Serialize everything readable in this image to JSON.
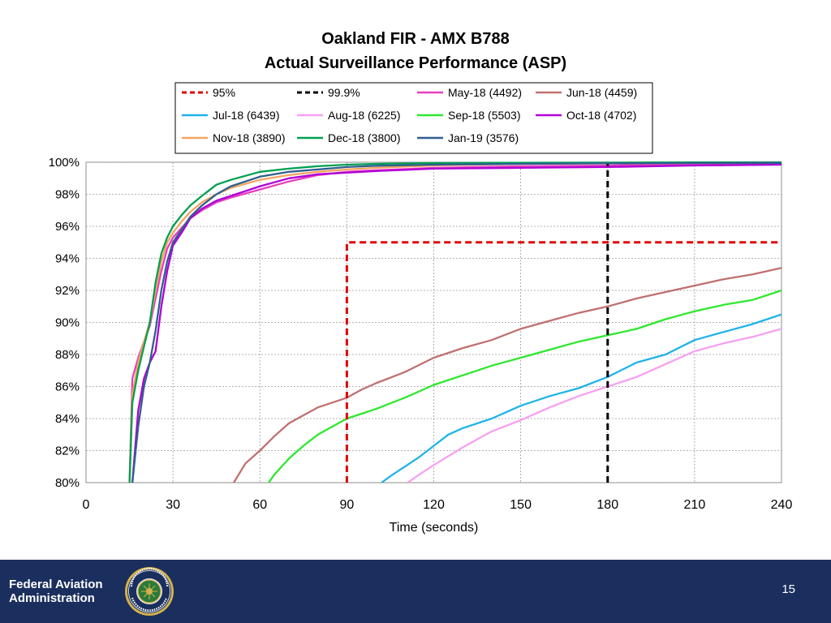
{
  "slide": {
    "agency_line1": "Federal Aviation",
    "agency_line2": "Administration",
    "page_number": "15",
    "footer_color": "#1b2f5e"
  },
  "chart_data": {
    "type": "line",
    "title": "Oakland FIR - AMX B788",
    "subtitle": "Actual Surveillance  Performance (ASP)",
    "xlabel": "Time (seconds)",
    "ylabel": "",
    "xlim": [
      0,
      240
    ],
    "ylim": [
      80,
      100
    ],
    "xticks": [
      0,
      30,
      60,
      90,
      120,
      150,
      180,
      210,
      240
    ],
    "xtick_labels": [
      "0",
      "30",
      "60",
      "90",
      "120",
      "150",
      "180",
      "210",
      "240"
    ],
    "yticks": [
      80,
      82,
      84,
      86,
      88,
      90,
      92,
      94,
      96,
      98,
      100
    ],
    "ytick_labels": [
      "80%",
      "82%",
      "84%",
      "86%",
      "88%",
      "90%",
      "92%",
      "94%",
      "96%",
      "98%",
      "100%"
    ],
    "grid": true,
    "legend_position": "top",
    "series": [
      {
        "name": "95%",
        "color": "#e00000",
        "dashed": true,
        "x": [
          90,
          90,
          240
        ],
        "y": [
          80,
          95,
          95
        ]
      },
      {
        "name": "99.9%",
        "color": "#000000",
        "dashed": true,
        "x": [
          180,
          180
        ],
        "y": [
          80,
          99.9
        ]
      },
      {
        "name": "May-18 (4492)",
        "color": "#e83fbe",
        "x": [
          15,
          16,
          18,
          20,
          22,
          24,
          26,
          28,
          30,
          33,
          36,
          40,
          45,
          50,
          60,
          70,
          80,
          90,
          100,
          120,
          150,
          180,
          210,
          240
        ],
        "y": [
          80,
          86.5,
          87.8,
          88.8,
          89.8,
          91.5,
          93.2,
          94.6,
          95.3,
          95.9,
          96.5,
          97,
          97.5,
          97.8,
          98.3,
          98.8,
          99.2,
          99.4,
          99.5,
          99.65,
          99.75,
          99.8,
          99.87,
          99.9
        ]
      },
      {
        "name": "Jun-18 (4459)",
        "color": "#c07070",
        "x": [
          51,
          55,
          60,
          65,
          70,
          75,
          80,
          85,
          90,
          95,
          100,
          110,
          120,
          130,
          140,
          150,
          160,
          170,
          180,
          190,
          200,
          210,
          220,
          230,
          240
        ],
        "y": [
          80,
          81.2,
          82,
          82.9,
          83.7,
          84.2,
          84.7,
          85,
          85.3,
          85.8,
          86.2,
          86.9,
          87.8,
          88.4,
          88.9,
          89.6,
          90.1,
          90.6,
          91,
          91.5,
          91.9,
          92.3,
          92.7,
          93,
          93.4
        ]
      },
      {
        "name": "Jul-18 (6439)",
        "color": "#1fb3e8",
        "x": [
          102,
          105,
          110,
          115,
          120,
          125,
          130,
          140,
          150,
          160,
          170,
          180,
          190,
          200,
          210,
          220,
          230,
          240
        ],
        "y": [
          80,
          80.4,
          81,
          81.6,
          82.3,
          83,
          83.4,
          84,
          84.8,
          85.4,
          85.9,
          86.6,
          87.5,
          88,
          88.9,
          89.4,
          89.9,
          90.5
        ]
      },
      {
        "name": "Aug-18 (6225)",
        "color": "#f7a0f0",
        "x": [
          111,
          115,
          120,
          130,
          140,
          150,
          160,
          170,
          180,
          190,
          200,
          210,
          220,
          230,
          240
        ],
        "y": [
          80,
          80.5,
          81.1,
          82.2,
          83.2,
          83.9,
          84.7,
          85.4,
          86,
          86.6,
          87.4,
          88.2,
          88.7,
          89.1,
          89.6
        ]
      },
      {
        "name": "Sep-18 (5503)",
        "color": "#2ee82e",
        "x": [
          63,
          65,
          70,
          75,
          80,
          85,
          90,
          95,
          100,
          110,
          120,
          130,
          140,
          150,
          160,
          170,
          180,
          190,
          200,
          210,
          220,
          230,
          240
        ],
        "y": [
          80,
          80.5,
          81.5,
          82.3,
          83,
          83.5,
          84,
          84.3,
          84.6,
          85.3,
          86.1,
          86.7,
          87.3,
          87.8,
          88.3,
          88.8,
          89.2,
          89.6,
          90.2,
          90.7,
          91.1,
          91.4,
          92
        ]
      },
      {
        "name": "Oct-18 (4702)",
        "color": "#b000d8",
        "x": [
          16,
          18,
          20,
          22,
          24,
          26,
          28,
          30,
          33,
          36,
          40,
          45,
          50,
          60,
          70,
          80,
          90,
          100,
          120,
          150,
          180,
          210,
          240
        ],
        "y": [
          80,
          84.5,
          86.5,
          87.5,
          88.2,
          91,
          93.2,
          94.8,
          95.6,
          96.5,
          97.1,
          97.6,
          97.9,
          98.5,
          99,
          99.25,
          99.35,
          99.45,
          99.6,
          99.65,
          99.7,
          99.8,
          99.85
        ]
      },
      {
        "name": "Nov-18 (3890)",
        "color": "#f4a460",
        "x": [
          15,
          16,
          18,
          20,
          22,
          24,
          26,
          28,
          30,
          33,
          36,
          40,
          45,
          50,
          60,
          70,
          80,
          90,
          100,
          120,
          150,
          180,
          210,
          240
        ],
        "y": [
          80,
          85.5,
          87.5,
          88.8,
          90,
          92,
          93.8,
          95,
          95.6,
          96.3,
          96.9,
          97.5,
          98,
          98.4,
          98.9,
          99.2,
          99.4,
          99.55,
          99.65,
          99.8,
          99.9,
          99.93,
          99.95,
          99.96
        ]
      },
      {
        "name": "Dec-18 (3800)",
        "color": "#00a050",
        "x": [
          15,
          16,
          18,
          20,
          22,
          24,
          26,
          28,
          30,
          33,
          36,
          40,
          45,
          50,
          60,
          70,
          80,
          90,
          100,
          120,
          150,
          180,
          210,
          240
        ],
        "y": [
          80,
          85,
          87,
          88.5,
          90,
          92.5,
          94.3,
          95.3,
          96,
          96.7,
          97.3,
          97.9,
          98.6,
          98.9,
          99.4,
          99.6,
          99.75,
          99.85,
          99.9,
          99.95,
          99.97,
          99.98,
          99.99,
          99.99
        ]
      },
      {
        "name": "Jan-19 (3576)",
        "color": "#2f5f8f",
        "x": [
          16,
          18,
          20,
          22,
          24,
          26,
          28,
          30,
          33,
          36,
          40,
          45,
          50,
          60,
          70,
          80,
          90,
          100,
          120,
          150,
          180,
          210,
          240
        ],
        "y": [
          80,
          83.5,
          86,
          87.5,
          89.5,
          92,
          93.8,
          95,
          95.8,
          96.6,
          97.3,
          98,
          98.5,
          99.1,
          99.4,
          99.55,
          99.7,
          99.78,
          99.85,
          99.9,
          99.93,
          99.95,
          99.96
        ]
      }
    ]
  }
}
